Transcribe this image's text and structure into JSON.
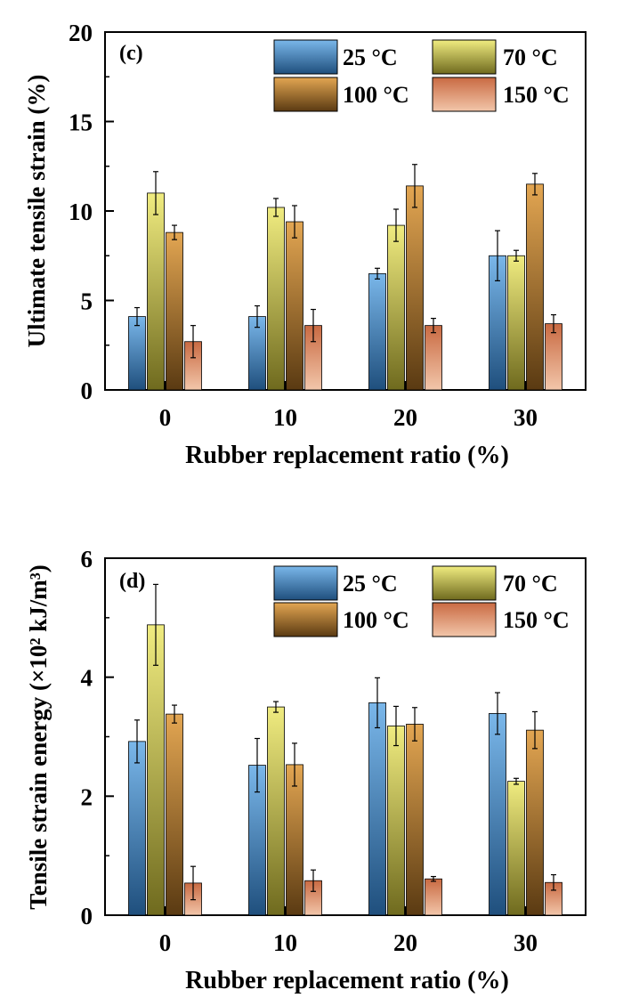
{
  "chart_data": [
    {
      "type": "bar",
      "panel_label": "(c)",
      "title": "",
      "xlabel": "Rubber replacement ratio (%)",
      "ylabel": "Ultimate tensile strain (%)",
      "ylim": [
        0,
        20
      ],
      "yticks": [
        "0",
        "5",
        "10",
        "15",
        "20"
      ],
      "categories": [
        "0",
        "10",
        "20",
        "30"
      ],
      "legend_position": "top-right",
      "series": [
        {
          "name": "25 °C",
          "values": [
            4.1,
            4.1,
            6.5,
            7.5
          ],
          "errors": [
            0.5,
            0.6,
            0.3,
            1.4
          ]
        },
        {
          "name": "70 °C",
          "values": [
            11.0,
            10.2,
            9.2,
            7.5
          ],
          "errors": [
            1.2,
            0.5,
            0.9,
            0.3
          ]
        },
        {
          "name": "100 °C",
          "values": [
            8.8,
            9.4,
            11.4,
            11.5
          ],
          "errors": [
            0.4,
            0.9,
            1.2,
            0.6
          ]
        },
        {
          "name": "150 °C",
          "values": [
            2.7,
            3.6,
            3.6,
            3.7
          ],
          "errors": [
            0.9,
            0.9,
            0.4,
            0.5
          ]
        }
      ]
    },
    {
      "type": "bar",
      "panel_label": "(d)",
      "title": "",
      "xlabel": "Rubber replacement ratio (%)",
      "ylabel": "Tensile strain energy (×10² kJ/m³)",
      "ylim": [
        0,
        6
      ],
      "yticks": [
        "0",
        "2",
        "4",
        "6"
      ],
      "categories": [
        "0",
        "10",
        "20",
        "30"
      ],
      "legend_position": "top-right",
      "series": [
        {
          "name": "25 °C",
          "values": [
            2.92,
            2.52,
            3.57,
            3.39
          ],
          "errors": [
            0.36,
            0.45,
            0.42,
            0.35
          ]
        },
        {
          "name": "70 °C",
          "values": [
            4.88,
            3.5,
            3.18,
            2.25
          ],
          "errors": [
            0.68,
            0.09,
            0.33,
            0.05
          ]
        },
        {
          "name": "100 °C",
          "values": [
            3.38,
            2.53,
            3.21,
            3.11
          ],
          "errors": [
            0.15,
            0.36,
            0.28,
            0.31
          ]
        },
        {
          "name": "150 °C",
          "values": [
            0.54,
            0.58,
            0.61,
            0.55
          ],
          "errors": [
            0.28,
            0.18,
            0.04,
            0.13
          ]
        }
      ]
    }
  ],
  "colors": {
    "s0": [
      "#7ab7ea",
      "#1f4f7d"
    ],
    "s1": [
      "#f0ec80",
      "#6f6a1e"
    ],
    "s2": [
      "#e3a652",
      "#5a3a12"
    ],
    "s3": [
      "#c96a42",
      "#f2c6aa"
    ]
  }
}
